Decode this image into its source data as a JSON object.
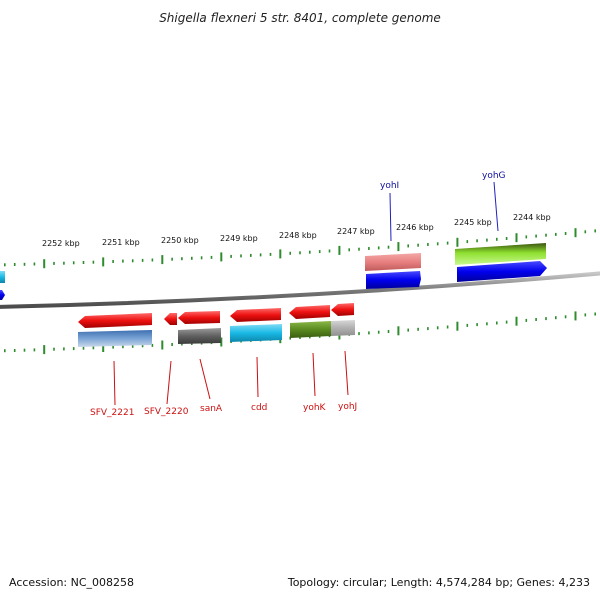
{
  "title": "Shigella flexneri 5 str. 8401, complete genome",
  "footer": {
    "accession": "Accession: NC_008258",
    "summary": "Topology: circular; Length: 4,574,284 bp; Genes: 4,233"
  },
  "ruler": {
    "ticks": [
      "2252 kbp",
      "2251 kbp",
      "2250 kbp",
      "2249 kbp",
      "2248 kbp",
      "2247 kbp",
      "2246 kbp",
      "2245 kbp",
      "2244 kbp"
    ]
  },
  "genes": {
    "top": [
      {
        "label": "yohI",
        "color": "#1010a0"
      },
      {
        "label": "yohG",
        "color": "#1010a0"
      }
    ],
    "bottom": [
      {
        "label": "SFV_2221",
        "color": "#cc1010"
      },
      {
        "label": "SFV_2220",
        "color": "#cc1010"
      },
      {
        "label": "sanA",
        "color": "#cc1010"
      },
      {
        "label": "cdd",
        "color": "#cc1010"
      },
      {
        "label": "yohK",
        "color": "#cc1010"
      },
      {
        "label": "yohJ",
        "color": "#cc1010"
      }
    ]
  },
  "colors": {
    "backbone": "#8a8a8a",
    "tick": "#2e8b2e",
    "forward_gene": "#0000ee",
    "reverse_gene": "#ee1111",
    "cyan_feature": "#19b9e6",
    "olive_feature": "#5a8a20",
    "lime_feature": "#8fe030",
    "salmon_feature": "#e88080",
    "steel_feature": "#4a7fc0",
    "grey_feature": "#707070"
  }
}
